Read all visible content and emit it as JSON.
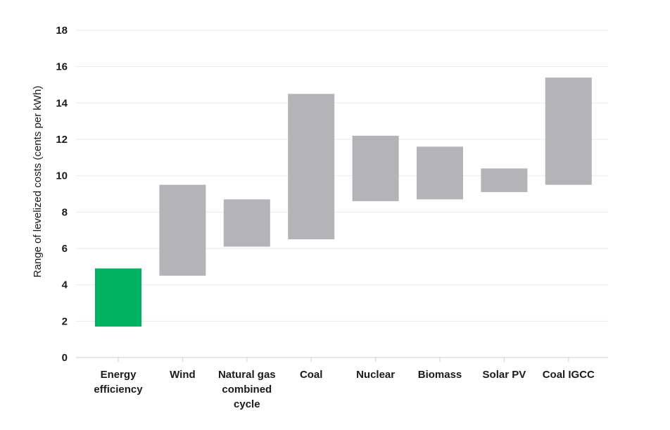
{
  "chart_data": {
    "type": "bar",
    "subtype": "floating-range",
    "ylabel": "Range of levelized costs (cents per kWh)",
    "xlabel": "",
    "ylim": [
      0,
      18
    ],
    "yticks": [
      0,
      2,
      4,
      6,
      8,
      10,
      12,
      14,
      16,
      18
    ],
    "grid": true,
    "categories": [
      {
        "label_lines": [
          "Energy",
          "efficiency"
        ],
        "low": 1.7,
        "high": 4.9,
        "color": "#00b15f"
      },
      {
        "label_lines": [
          "Wind"
        ],
        "low": 4.5,
        "high": 9.5,
        "color": "#b4b3b7"
      },
      {
        "label_lines": [
          "Natural gas",
          "combined",
          "cycle"
        ],
        "low": 6.1,
        "high": 8.7,
        "color": "#b4b3b7"
      },
      {
        "label_lines": [
          "Coal"
        ],
        "low": 6.5,
        "high": 14.5,
        "color": "#b4b3b7"
      },
      {
        "label_lines": [
          "Nuclear"
        ],
        "low": 8.6,
        "high": 12.2,
        "color": "#b4b3b7"
      },
      {
        "label_lines": [
          "Biomass"
        ],
        "low": 8.7,
        "high": 11.6,
        "color": "#b4b3b7"
      },
      {
        "label_lines": [
          "Solar PV"
        ],
        "low": 9.1,
        "high": 10.4,
        "color": "#b4b3b7"
      },
      {
        "label_lines": [
          "Coal IGCC"
        ],
        "low": 9.5,
        "high": 15.4,
        "color": "#b4b3b7"
      }
    ]
  }
}
